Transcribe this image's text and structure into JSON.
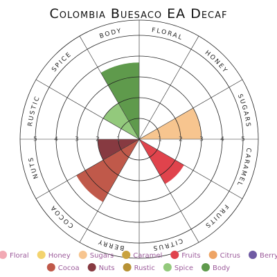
{
  "chart_data": {
    "type": "polar",
    "title": "Colombia Buesaco EA Decaf",
    "categories": [
      "Floral",
      "Honey",
      "Sugars",
      "Caramel",
      "Fruits",
      "Citrus",
      "Berry",
      "Cocoa",
      "Nuts",
      "Rustic",
      "Spice",
      "Body"
    ],
    "values": [
      0,
      0,
      3,
      0,
      2.5,
      0,
      0,
      3.5,
      2,
      0,
      2,
      3.7
    ],
    "colors": [
      "#f2a9b4",
      "#f3d36e",
      "#f7c58f",
      "#c9a23e",
      "#e0434c",
      "#eea464",
      "#6f5aa3",
      "#c0594a",
      "#873a41",
      "#b79235",
      "#93c97c",
      "#5f9a4c"
    ],
    "rlim": [
      0,
      5
    ],
    "rticks": [
      1,
      2,
      3,
      4,
      5
    ]
  }
}
